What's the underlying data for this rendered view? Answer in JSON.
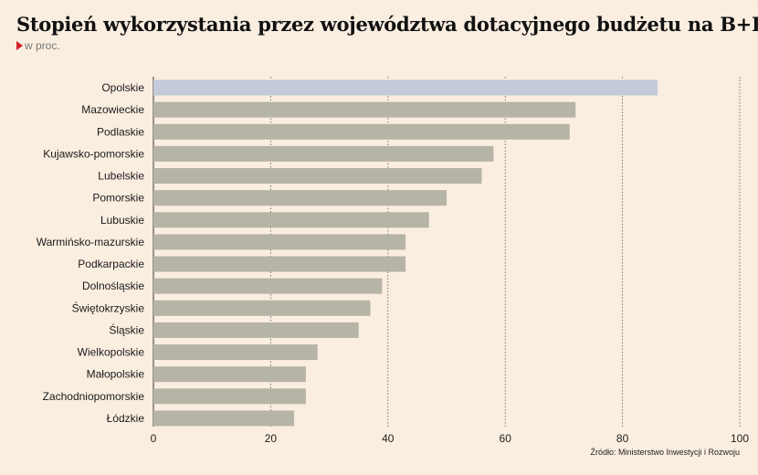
{
  "chart_data": {
    "type": "bar",
    "orientation": "horizontal",
    "title": "Stopień wykorzystania przez województwa dotacyjnego budżetu na B+R",
    "subtitle": "w proc.",
    "categories": [
      "Opolskie",
      "Mazowieckie",
      "Podlaskie",
      "Kujawsko-pomorskie",
      "Lubelskie",
      "Pomorskie",
      "Lubuskie",
      "Warmińsko-mazurskie",
      "Podkarpackie",
      "Dolnośląskie",
      "Świętokrzyskie",
      "Śląskie",
      "Wielkopolskie",
      "Małopolskie",
      "Zachodniopomorskie",
      "Łódzkie"
    ],
    "values": [
      86,
      72,
      71,
      58,
      56,
      50,
      47,
      43,
      43,
      39,
      37,
      35,
      28,
      26,
      26,
      24
    ],
    "highlight_index": 0,
    "xlim": [
      0,
      100
    ],
    "xticks": [
      0,
      20,
      40,
      60,
      80,
      100
    ],
    "grid": "vertical dotted",
    "colors": {
      "highlight": "#c4cada",
      "bar": "#b5b4a6",
      "background": "#faeee0",
      "grid": "#555555",
      "accent": "#d0202a"
    },
    "source": "Źródło: Ministerstwo Inwestycji i Rozwoju"
  }
}
